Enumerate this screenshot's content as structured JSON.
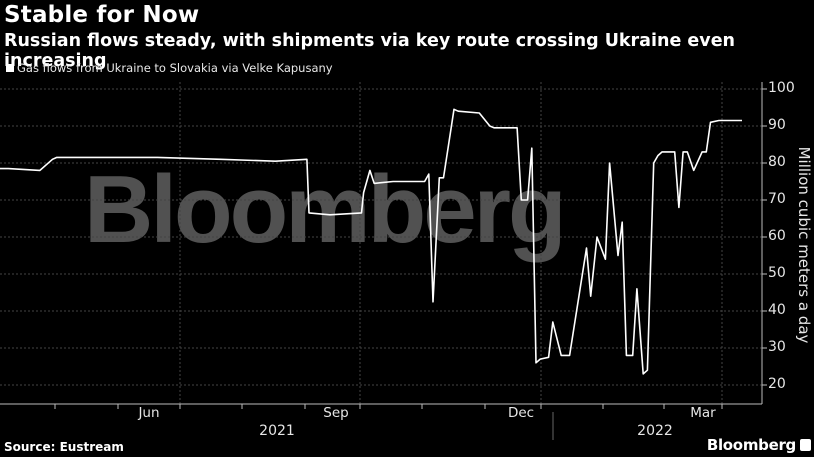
{
  "title": "Stable for Now",
  "subtitle": "Russian flows steady, with shipments via key route crossing Ukraine even increasing",
  "legend": {
    "label": "Gas flows from Ukraine to Slovakia via Velke Kapusany",
    "color": "#ffffff"
  },
  "watermark": "Bloomberg",
  "source": "Source: Eustream",
  "brand": "Bloomberg",
  "chart_data": {
    "type": "line",
    "title": "Stable for Now",
    "subtitle": "Russian flows steady, with shipments via key route crossing Ukraine even increasing",
    "xlabel": "",
    "ylabel": "Million cubic meters a day",
    "ylim": [
      17,
      100
    ],
    "yticks": [
      20,
      30,
      40,
      50,
      60,
      70,
      80,
      90,
      100
    ],
    "xticks": [
      "Jun",
      "Sep",
      "Dec",
      "Mar"
    ],
    "xyears": [
      "2021",
      "2022"
    ],
    "grid": true,
    "legend_position": "top-left",
    "series": [
      {
        "name": "Gas flows from Ukraine to Slovakia via Velke Kapusany",
        "color": "#ffffff",
        "x": [
          "2021-04-05",
          "2021-04-20",
          "2021-04-26",
          "2021-04-28",
          "2021-05-15",
          "2021-06-15",
          "2021-07-15",
          "2021-08-10",
          "2021-08-25",
          "2021-08-26",
          "2021-09-05",
          "2021-09-20",
          "2021-09-21",
          "2021-09-24",
          "2021-09-26",
          "2021-10-05",
          "2021-10-20",
          "2021-10-22",
          "2021-10-24",
          "2021-10-27",
          "2021-10-29",
          "2021-11-03",
          "2021-11-05",
          "2021-11-15",
          "2021-11-20",
          "2021-11-22",
          "2021-12-03",
          "2021-12-05",
          "2021-12-08",
          "2021-12-10",
          "2021-12-12",
          "2021-12-14",
          "2021-12-18",
          "2021-12-20",
          "2021-12-24",
          "2021-12-28",
          "2022-01-05",
          "2022-01-07",
          "2022-01-10",
          "2022-01-14",
          "2022-01-16",
          "2022-01-20",
          "2022-01-22",
          "2022-01-24",
          "2022-01-27",
          "2022-01-29",
          "2022-02-01",
          "2022-02-03",
          "2022-02-06",
          "2022-02-08",
          "2022-02-10",
          "2022-02-12",
          "2022-02-16",
          "2022-02-18",
          "2022-02-20",
          "2022-02-22",
          "2022-02-25",
          "2022-03-01",
          "2022-03-03",
          "2022-03-05",
          "2022-03-09",
          "2022-03-12",
          "2022-03-14",
          "2022-03-18",
          "2022-03-20"
        ],
        "values": [
          78.5,
          78,
          81,
          81.5,
          81.5,
          81.5,
          81,
          80.5,
          81,
          66.5,
          66,
          66.5,
          72,
          78,
          74.5,
          75,
          75,
          77,
          42.5,
          76,
          76,
          94.5,
          94,
          93.5,
          90,
          89.5,
          89.5,
          70,
          70,
          84,
          26,
          27,
          27.5,
          37,
          28,
          28,
          57,
          44,
          60,
          54,
          80,
          55,
          64,
          28,
          28,
          46,
          23,
          24,
          80,
          82,
          83,
          83,
          83,
          68,
          83,
          83,
          78,
          83,
          83,
          91,
          91.5,
          91.5,
          91.5,
          91.5,
          91.5
        ]
      }
    ]
  },
  "y_axis": {
    "label": "Million cubic meters a day",
    "ticks": [
      "100",
      "90",
      "80",
      "70",
      "60",
      "50",
      "40",
      "30",
      "20"
    ]
  },
  "x_axis": {
    "months": [
      "Jun",
      "Sep",
      "Dec",
      "Mar"
    ],
    "years": [
      "2021",
      "2022"
    ]
  }
}
